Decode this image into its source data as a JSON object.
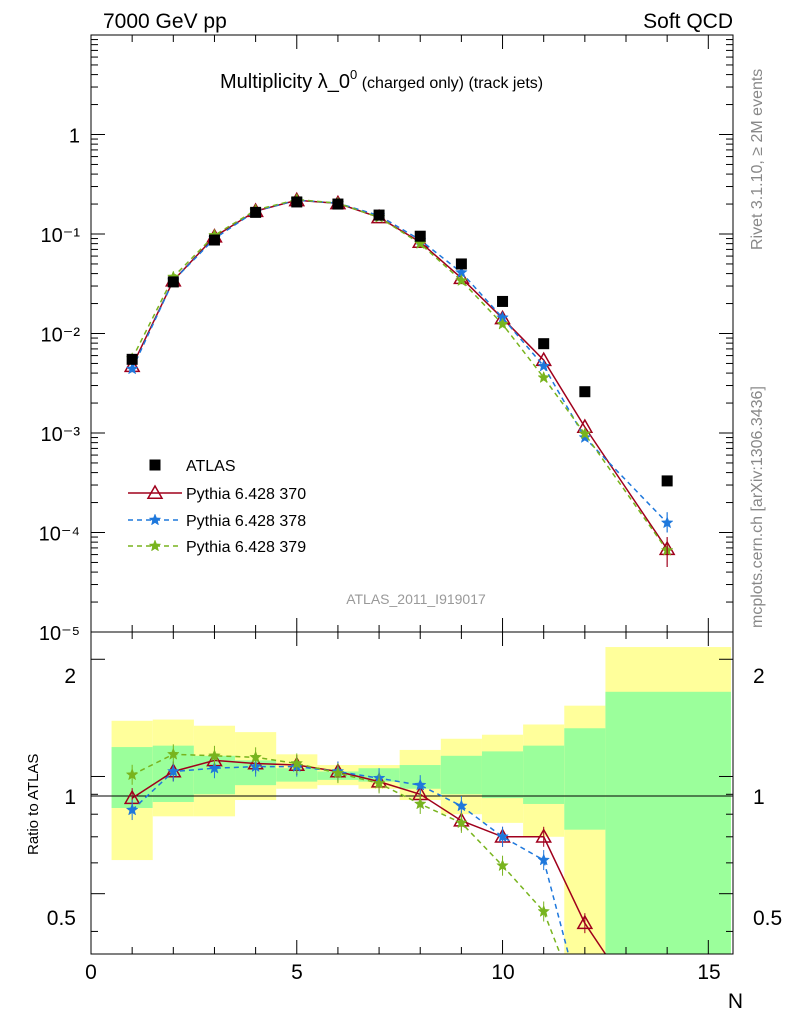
{
  "header": {
    "left": "7000 GeV pp",
    "right": "Soft QCD"
  },
  "side_labels": {
    "rivet": "Rivet 3.1.10, ≥ 2M events",
    "mcplots": "mcplots.cern.ch [arXiv:1306.3436]"
  },
  "colors": {
    "atlas": "#000000",
    "p370": "#a0001c",
    "p378": "#1e78dc",
    "p379": "#78b41e",
    "band_green": "#9bff9b",
    "band_yellow": "#ffff9b"
  },
  "chart_data": [
    {
      "type": "scatter",
      "title": "Multiplicity λ_0",
      "title_sup": "0",
      "title_suffix": " (charged only) (track jets)",
      "analysis_label": "ATLAS_2011_I919017",
      "yscale": "log",
      "xlim": [
        0,
        15.6
      ],
      "ylim": [
        1e-05,
        10
      ],
      "ytick_labels": [
        "10⁻⁵",
        "10⁻⁴",
        "10⁻³",
        "10⁻²",
        "10⁻¹",
        "1"
      ],
      "legend_position": "lower-left",
      "x": [
        1,
        2,
        3,
        4,
        5,
        6,
        7,
        8,
        9,
        10,
        11,
        12,
        14
      ],
      "series": [
        {
          "key": "atlas",
          "name": "ATLAS",
          "values": [
            0.0055,
            0.033,
            0.087,
            0.165,
            0.21,
            0.2,
            0.155,
            0.095,
            0.05,
            0.021,
            0.0079,
            0.0026,
            0.00033
          ]
        },
        {
          "key": "p370",
          "name": "Pythia 6.428 370",
          "values": [
            0.0047,
            0.034,
            0.094,
            0.17,
            0.218,
            0.203,
            0.147,
            0.083,
            0.036,
            0.0142,
            0.0054,
            0.00115,
            6.8e-05
          ]
        },
        {
          "key": "p378",
          "name": "Pythia 6.428 378",
          "values": [
            0.0044,
            0.034,
            0.09,
            0.17,
            0.219,
            0.204,
            0.153,
            0.087,
            0.041,
            0.0144,
            0.0047,
            0.0009,
            0.000125
          ]
        },
        {
          "key": "p379",
          "name": "Pythia 6.428 379",
          "values": [
            0.0056,
            0.037,
            0.097,
            0.174,
            0.222,
            0.204,
            0.147,
            0.08,
            0.034,
            0.0124,
            0.0036,
            0.00098,
            6.6e-05
          ]
        }
      ]
    },
    {
      "type": "line",
      "ylabel": "Ratio to ATLAS",
      "xlabel": "N",
      "yscale": "log",
      "xlim": [
        0,
        15.6
      ],
      "ylim": [
        0.35,
        2.35
      ],
      "x_ticks": [
        0,
        5,
        10,
        15
      ],
      "y_ticks": [
        0.5,
        1,
        2
      ],
      "x_tick_labels": [
        "0",
        "5",
        "10",
        "15"
      ],
      "y_tick_labels": [
        "0.5",
        "1",
        "2"
      ],
      "reference_line": 1,
      "x": [
        1,
        2,
        3,
        4,
        5,
        6,
        7,
        8,
        9,
        10,
        11,
        12,
        14
      ],
      "band_bins": [
        {
          "x0": 0.5,
          "x1": 1.5,
          "green": [
            0.83,
            1.19
          ],
          "yellow": [
            0.61,
            1.39
          ]
        },
        {
          "x0": 1.5,
          "x1": 2.5,
          "green": [
            0.86,
            1.2
          ],
          "yellow": [
            0.79,
            1.4
          ]
        },
        {
          "x0": 2.5,
          "x1": 3.5,
          "green": [
            0.9,
            1.13
          ],
          "yellow": [
            0.79,
            1.35
          ]
        },
        {
          "x0": 3.5,
          "x1": 4.5,
          "green": [
            0.95,
            1.1
          ],
          "yellow": [
            0.87,
            1.3
          ]
        },
        {
          "x0": 4.5,
          "x1": 5.5,
          "green": [
            0.97,
            1.05
          ],
          "yellow": [
            0.93,
            1.14
          ]
        },
        {
          "x0": 5.5,
          "x1": 6.5,
          "green": [
            0.98,
            1.03
          ],
          "yellow": [
            0.95,
            1.07
          ]
        },
        {
          "x0": 6.5,
          "x1": 7.5,
          "green": [
            0.97,
            1.05
          ],
          "yellow": [
            0.93,
            1.07
          ]
        },
        {
          "x0": 7.5,
          "x1": 8.5,
          "green": [
            0.93,
            1.07
          ],
          "yellow": [
            0.87,
            1.17
          ]
        },
        {
          "x0": 8.5,
          "x1": 9.5,
          "green": [
            0.9,
            1.13
          ],
          "yellow": [
            0.8,
            1.25
          ]
        },
        {
          "x0": 9.5,
          "x1": 10.5,
          "green": [
            0.88,
            1.16
          ],
          "yellow": [
            0.76,
            1.28
          ]
        },
        {
          "x0": 10.5,
          "x1": 11.5,
          "green": [
            0.85,
            1.2
          ],
          "yellow": [
            0.7,
            1.36
          ]
        },
        {
          "x0": 11.5,
          "x1": 12.5,
          "green": [
            0.73,
            1.33
          ],
          "yellow": [
            0.35,
            1.52
          ]
        },
        {
          "x0": 12.5,
          "x1": 15.55,
          "green": [
            0.35,
            1.65
          ],
          "yellow": [
            0.35,
            2.15
          ]
        }
      ],
      "series": [
        {
          "key": "p370",
          "name": "Pythia 6.428 370",
          "values": [
            0.88,
            1.03,
            1.1,
            1.08,
            1.07,
            1.03,
            0.97,
            0.9,
            0.77,
            0.7,
            0.7,
            0.42,
            null
          ]
        },
        {
          "key": "p378",
          "name": "Pythia 6.428 378",
          "values": [
            0.82,
            1.03,
            1.05,
            1.06,
            1.06,
            1.03,
            0.99,
            0.95,
            0.84,
            0.7,
            0.61,
            null,
            null
          ]
        },
        {
          "key": "p379",
          "name": "Pythia 6.428 379",
          "values": [
            1.01,
            1.14,
            1.13,
            1.12,
            1.08,
            1.02,
            0.96,
            0.85,
            0.76,
            0.59,
            0.45,
            null,
            null
          ]
        }
      ]
    }
  ]
}
